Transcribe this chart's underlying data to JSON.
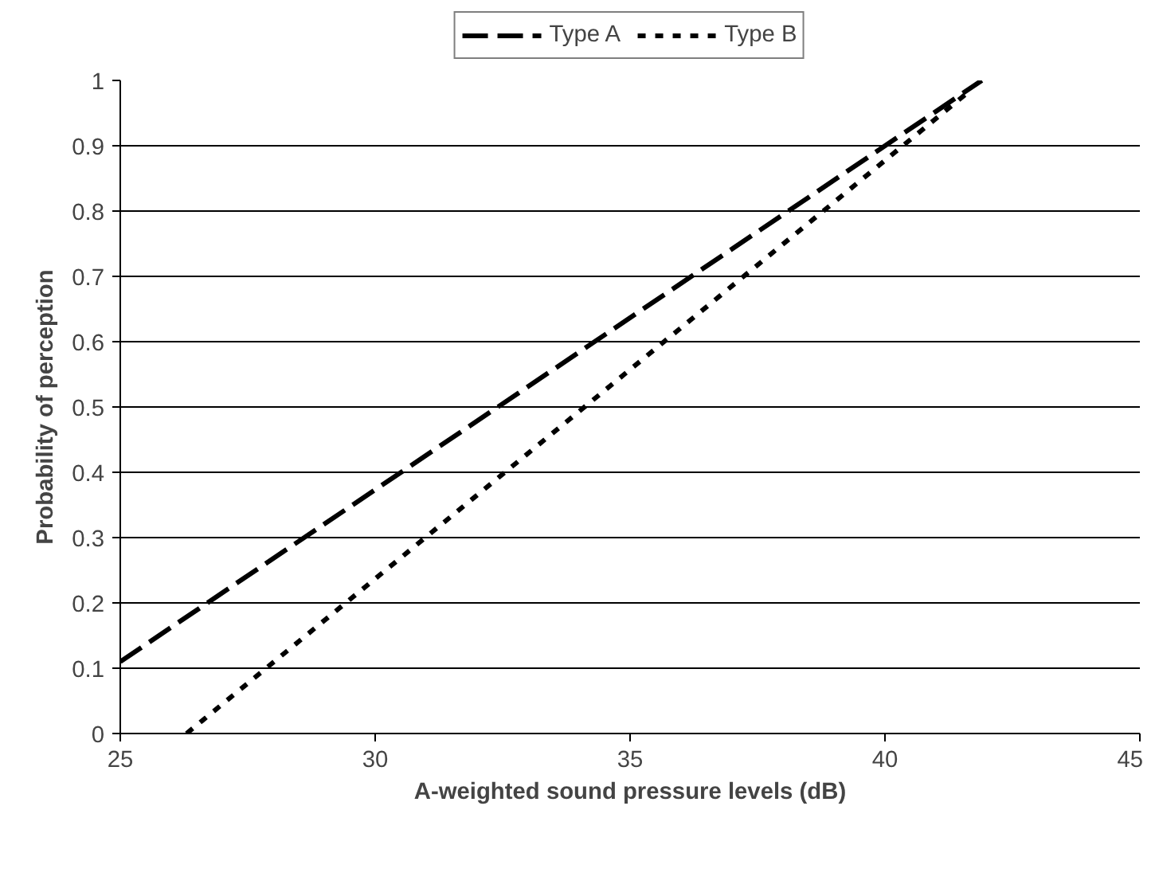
{
  "chart_data": {
    "type": "line",
    "xlabel": "A-weighted sound pressure levels (dB)",
    "ylabel": "Probability of perception",
    "xlim": [
      25,
      45
    ],
    "xticks": [
      25,
      30,
      35,
      40,
      45
    ],
    "ylim": [
      0,
      1
    ],
    "yticks": [
      0,
      0.1,
      0.2,
      0.3,
      0.4,
      0.5,
      0.6,
      0.7,
      0.8,
      0.9,
      1
    ],
    "grid": "y",
    "legend": "top",
    "marker": "none",
    "series": [
      {
        "name": "Type A",
        "color": "#000000",
        "line_style": "dashed",
        "x": [
          25,
          41.9
        ],
        "values": [
          0.11,
          1.0
        ]
      },
      {
        "name": "Type B",
        "color": "#000000",
        "line_style": "dotted",
        "x": [
          26.3,
          41.6
        ],
        "values": [
          0,
          0.98
        ]
      }
    ]
  }
}
